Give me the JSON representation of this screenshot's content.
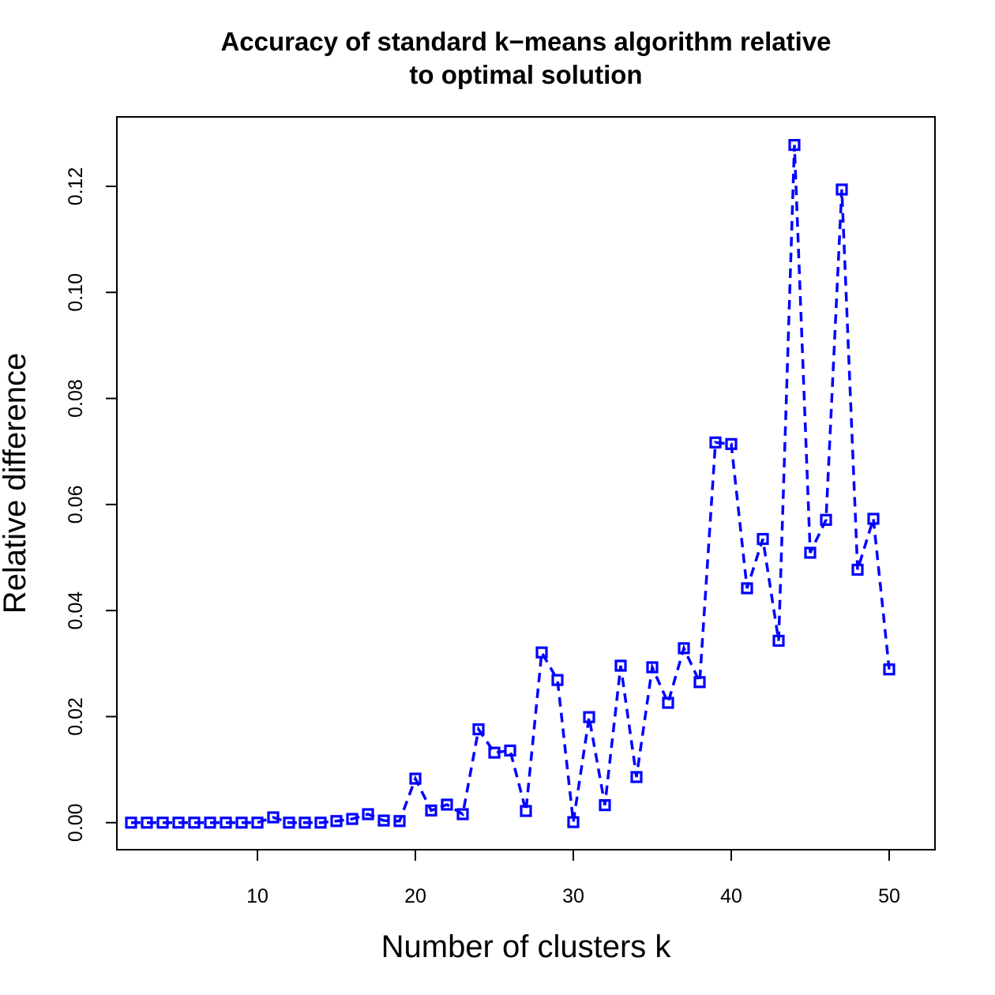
{
  "chart_data": {
    "type": "line",
    "title": [
      "Accuracy of standard k−means algorithm relative",
      "to optimal solution"
    ],
    "xlabel": "Number of clusters k",
    "ylabel": "Relative difference",
    "xlim": [
      1.1,
      52.9
    ],
    "ylim": [
      -0.0051,
      0.1331
    ],
    "xticks": [
      10,
      20,
      30,
      40,
      50
    ],
    "yticks": [
      0.0,
      0.02,
      0.04,
      0.06,
      0.08,
      0.1,
      0.12
    ],
    "ytick_labels": [
      "0.00",
      "0.02",
      "0.04",
      "0.06",
      "0.08",
      "0.10",
      "0.12"
    ],
    "line_style": "dashed",
    "marker": "open-square",
    "color": "#0000ff",
    "grid": false,
    "series": [
      {
        "x": [
          2,
          3,
          4,
          5,
          6,
          7,
          8,
          9,
          10,
          11,
          12,
          13,
          14,
          15,
          16,
          17,
          18,
          19,
          20,
          21,
          22,
          23,
          24,
          25,
          26,
          27,
          28,
          29,
          30,
          31,
          32,
          33,
          34,
          35,
          36,
          37,
          38,
          39,
          40,
          41,
          42,
          43,
          44,
          45,
          46,
          47,
          48,
          49,
          50
        ],
        "values": [
          0.0,
          0.0,
          0.0,
          0.0,
          0.0,
          0.0,
          0.0,
          0.0,
          0.0,
          0.001,
          0.0,
          0.0,
          0.0,
          0.0003,
          0.0007,
          0.0016,
          0.0004,
          0.0003,
          0.0083,
          0.0023,
          0.0034,
          0.0016,
          0.0176,
          0.0132,
          0.0136,
          0.0022,
          0.0321,
          0.0269,
          0.0001,
          0.0199,
          0.0033,
          0.0296,
          0.0086,
          0.0293,
          0.0226,
          0.0329,
          0.0265,
          0.0717,
          0.0714,
          0.0442,
          0.0535,
          0.0343,
          0.1278,
          0.0509,
          0.0571,
          0.1194,
          0.0477,
          0.0573,
          0.0289
        ]
      }
    ]
  }
}
